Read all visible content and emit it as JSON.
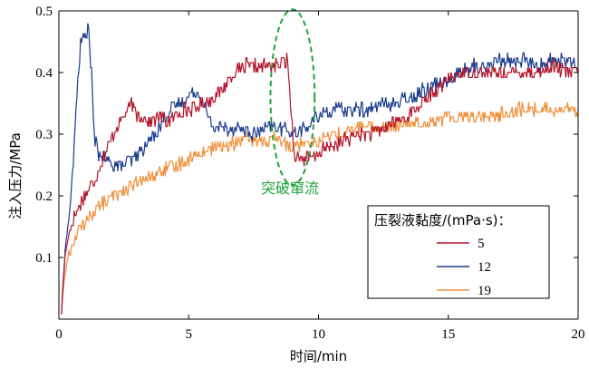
{
  "chart_data": {
    "type": "line",
    "xlabel": "时间/min",
    "ylabel": "注入压力/MPa",
    "xlim": [
      0,
      20
    ],
    "ylim": [
      0,
      0.5
    ],
    "x_ticks": [
      "0",
      "5",
      "10",
      "15",
      "20"
    ],
    "y_ticks": [
      "0.1",
      "0.2",
      "0.3",
      "0.4",
      "0.5"
    ],
    "grid": false,
    "legend": {
      "title": "压裂液黏度/(mPa·s)：",
      "placement": "bottom-right"
    },
    "annotation": {
      "text": "突破窜流",
      "x": 9.2,
      "y": 0.25,
      "ellipse_center": [
        9.0,
        0.36
      ],
      "ellipse_radius": [
        1.0,
        0.095
      ],
      "color": "#22a33a"
    },
    "series": [
      {
        "name": "5",
        "color": "#b3152b",
        "points": [
          [
            0.1,
            0.01
          ],
          [
            0.2,
            0.09
          ],
          [
            0.35,
            0.13
          ],
          [
            0.6,
            0.17
          ],
          [
            1.0,
            0.2
          ],
          [
            1.3,
            0.22
          ],
          [
            1.6,
            0.25
          ],
          [
            1.9,
            0.28
          ],
          [
            2.2,
            0.31
          ],
          [
            2.5,
            0.33
          ],
          [
            2.8,
            0.35
          ],
          [
            3.0,
            0.33
          ],
          [
            3.2,
            0.33
          ],
          [
            3.5,
            0.32
          ],
          [
            3.9,
            0.33
          ],
          [
            4.2,
            0.32
          ],
          [
            4.5,
            0.33
          ],
          [
            4.8,
            0.34
          ],
          [
            5.2,
            0.34
          ],
          [
            5.6,
            0.35
          ],
          [
            6.0,
            0.36
          ],
          [
            6.4,
            0.38
          ],
          [
            6.8,
            0.4
          ],
          [
            7.2,
            0.41
          ],
          [
            7.6,
            0.41
          ],
          [
            8.0,
            0.41
          ],
          [
            8.4,
            0.41
          ],
          [
            8.8,
            0.42
          ],
          [
            8.95,
            0.34
          ],
          [
            9.05,
            0.27
          ],
          [
            9.3,
            0.26
          ],
          [
            9.7,
            0.26
          ],
          [
            10.0,
            0.27
          ],
          [
            10.5,
            0.28
          ],
          [
            11.0,
            0.29
          ],
          [
            11.5,
            0.3
          ],
          [
            12.0,
            0.3
          ],
          [
            12.5,
            0.31
          ],
          [
            13.0,
            0.32
          ],
          [
            13.5,
            0.33
          ],
          [
            14.0,
            0.35
          ],
          [
            14.5,
            0.37
          ],
          [
            15.0,
            0.39
          ],
          [
            15.5,
            0.4
          ],
          [
            16.0,
            0.4
          ],
          [
            16.5,
            0.4
          ],
          [
            17.0,
            0.4
          ],
          [
            17.5,
            0.4
          ],
          [
            18.0,
            0.4
          ],
          [
            18.5,
            0.4
          ],
          [
            19.0,
            0.41
          ],
          [
            19.5,
            0.4
          ],
          [
            19.8,
            0.4
          ],
          [
            20.0,
            0.4
          ]
        ]
      },
      {
        "name": "12",
        "color": "#1b3b8e",
        "points": [
          [
            0.1,
            0.01
          ],
          [
            0.25,
            0.12
          ],
          [
            0.4,
            0.17
          ],
          [
            0.55,
            0.25
          ],
          [
            0.7,
            0.37
          ],
          [
            0.85,
            0.45
          ],
          [
            1.0,
            0.46
          ],
          [
            1.15,
            0.47
          ],
          [
            1.25,
            0.4
          ],
          [
            1.35,
            0.3
          ],
          [
            1.5,
            0.27
          ],
          [
            1.8,
            0.26
          ],
          [
            2.1,
            0.25
          ],
          [
            2.5,
            0.25
          ],
          [
            2.9,
            0.26
          ],
          [
            3.3,
            0.28
          ],
          [
            3.7,
            0.3
          ],
          [
            4.0,
            0.32
          ],
          [
            4.3,
            0.34
          ],
          [
            4.7,
            0.35
          ],
          [
            5.0,
            0.36
          ],
          [
            5.3,
            0.37
          ],
          [
            5.6,
            0.35
          ],
          [
            5.8,
            0.32
          ],
          [
            6.0,
            0.31
          ],
          [
            6.5,
            0.31
          ],
          [
            7.0,
            0.31
          ],
          [
            7.5,
            0.3
          ],
          [
            8.0,
            0.31
          ],
          [
            8.5,
            0.31
          ],
          [
            8.8,
            0.31
          ],
          [
            9.0,
            0.3
          ],
          [
            9.5,
            0.31
          ],
          [
            10.0,
            0.33
          ],
          [
            10.5,
            0.34
          ],
          [
            11.0,
            0.34
          ],
          [
            11.5,
            0.34
          ],
          [
            12.0,
            0.34
          ],
          [
            12.5,
            0.35
          ],
          [
            13.0,
            0.35
          ],
          [
            13.5,
            0.36
          ],
          [
            14.0,
            0.37
          ],
          [
            14.5,
            0.38
          ],
          [
            15.0,
            0.39
          ],
          [
            15.5,
            0.4
          ],
          [
            16.0,
            0.41
          ],
          [
            16.5,
            0.41
          ],
          [
            17.0,
            0.42
          ],
          [
            17.5,
            0.42
          ],
          [
            18.0,
            0.42
          ],
          [
            18.5,
            0.41
          ],
          [
            19.0,
            0.42
          ],
          [
            19.5,
            0.42
          ],
          [
            20.0,
            0.41
          ]
        ]
      },
      {
        "name": "19",
        "color": "#f0903a",
        "points": [
          [
            0.1,
            0.02
          ],
          [
            0.25,
            0.08
          ],
          [
            0.4,
            0.11
          ],
          [
            0.6,
            0.13
          ],
          [
            0.9,
            0.15
          ],
          [
            1.2,
            0.17
          ],
          [
            1.5,
            0.18
          ],
          [
            1.8,
            0.19
          ],
          [
            2.1,
            0.2
          ],
          [
            2.5,
            0.21
          ],
          [
            3.0,
            0.22
          ],
          [
            3.5,
            0.23
          ],
          [
            4.0,
            0.24
          ],
          [
            4.5,
            0.25
          ],
          [
            5.0,
            0.26
          ],
          [
            5.5,
            0.27
          ],
          [
            6.0,
            0.28
          ],
          [
            6.5,
            0.28
          ],
          [
            7.0,
            0.29
          ],
          [
            7.5,
            0.29
          ],
          [
            8.0,
            0.29
          ],
          [
            8.5,
            0.29
          ],
          [
            9.0,
            0.28
          ],
          [
            9.5,
            0.29
          ],
          [
            10.0,
            0.29
          ],
          [
            10.5,
            0.3
          ],
          [
            11.0,
            0.3
          ],
          [
            11.5,
            0.31
          ],
          [
            12.0,
            0.31
          ],
          [
            12.5,
            0.31
          ],
          [
            13.0,
            0.31
          ],
          [
            13.5,
            0.32
          ],
          [
            14.0,
            0.32
          ],
          [
            14.5,
            0.32
          ],
          [
            15.0,
            0.33
          ],
          [
            15.5,
            0.33
          ],
          [
            16.0,
            0.33
          ],
          [
            16.5,
            0.33
          ],
          [
            17.0,
            0.33
          ],
          [
            17.5,
            0.34
          ],
          [
            18.0,
            0.34
          ],
          [
            18.5,
            0.34
          ],
          [
            19.0,
            0.34
          ],
          [
            19.5,
            0.34
          ],
          [
            20.0,
            0.34
          ]
        ]
      }
    ]
  }
}
